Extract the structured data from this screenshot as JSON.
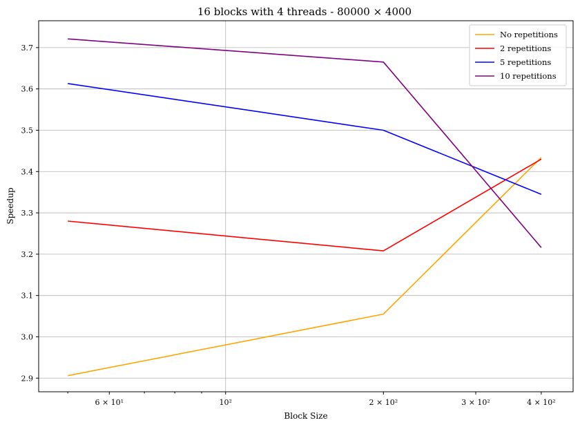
{
  "chart_data": {
    "type": "line",
    "title": "16 blocks with 4 threads - 80000 × 4000",
    "xlabel": "Block Size",
    "ylabel": "Speedup",
    "x_scale": "log",
    "x": [
      50,
      200,
      400
    ],
    "xlim": [
      44,
      460
    ],
    "ylim": [
      2.867,
      3.765
    ],
    "x_major_ticks": [
      {
        "value": 60,
        "label": "6 × 10¹"
      },
      {
        "value": 100,
        "label": "10²"
      },
      {
        "value": 200,
        "label": "2 × 10²"
      },
      {
        "value": 300,
        "label": "3 × 10²"
      },
      {
        "value": 400,
        "label": "4 × 10²"
      }
    ],
    "x_minor_ticks": [
      50,
      70,
      80,
      90
    ],
    "y_ticks": [
      {
        "value": 2.9,
        "label": "2.9"
      },
      {
        "value": 3.0,
        "label": "3.0"
      },
      {
        "value": 3.1,
        "label": "3.1"
      },
      {
        "value": 3.2,
        "label": "3.2"
      },
      {
        "value": 3.3,
        "label": "3.3"
      },
      {
        "value": 3.4,
        "label": "3.4"
      },
      {
        "value": 3.5,
        "label": "3.5"
      },
      {
        "value": 3.6,
        "label": "3.6"
      },
      {
        "value": 3.7,
        "label": "3.7"
      }
    ],
    "x_grid_values": [
      100
    ],
    "grid": true,
    "legend": "top-right",
    "series": [
      {
        "name": "No repetitions",
        "color": "#ffa500",
        "values": [
          2.906,
          3.055,
          3.434
        ]
      },
      {
        "name": "2 repetitions",
        "color": "#ff0000",
        "values": [
          3.28,
          3.208,
          3.43
        ]
      },
      {
        "name": "5 repetitions",
        "color": "#0000ff",
        "values": [
          3.613,
          3.5,
          3.345
        ]
      },
      {
        "name": "10 repetitions",
        "color": "#800080",
        "values": [
          3.721,
          3.665,
          3.216
        ]
      }
    ]
  }
}
